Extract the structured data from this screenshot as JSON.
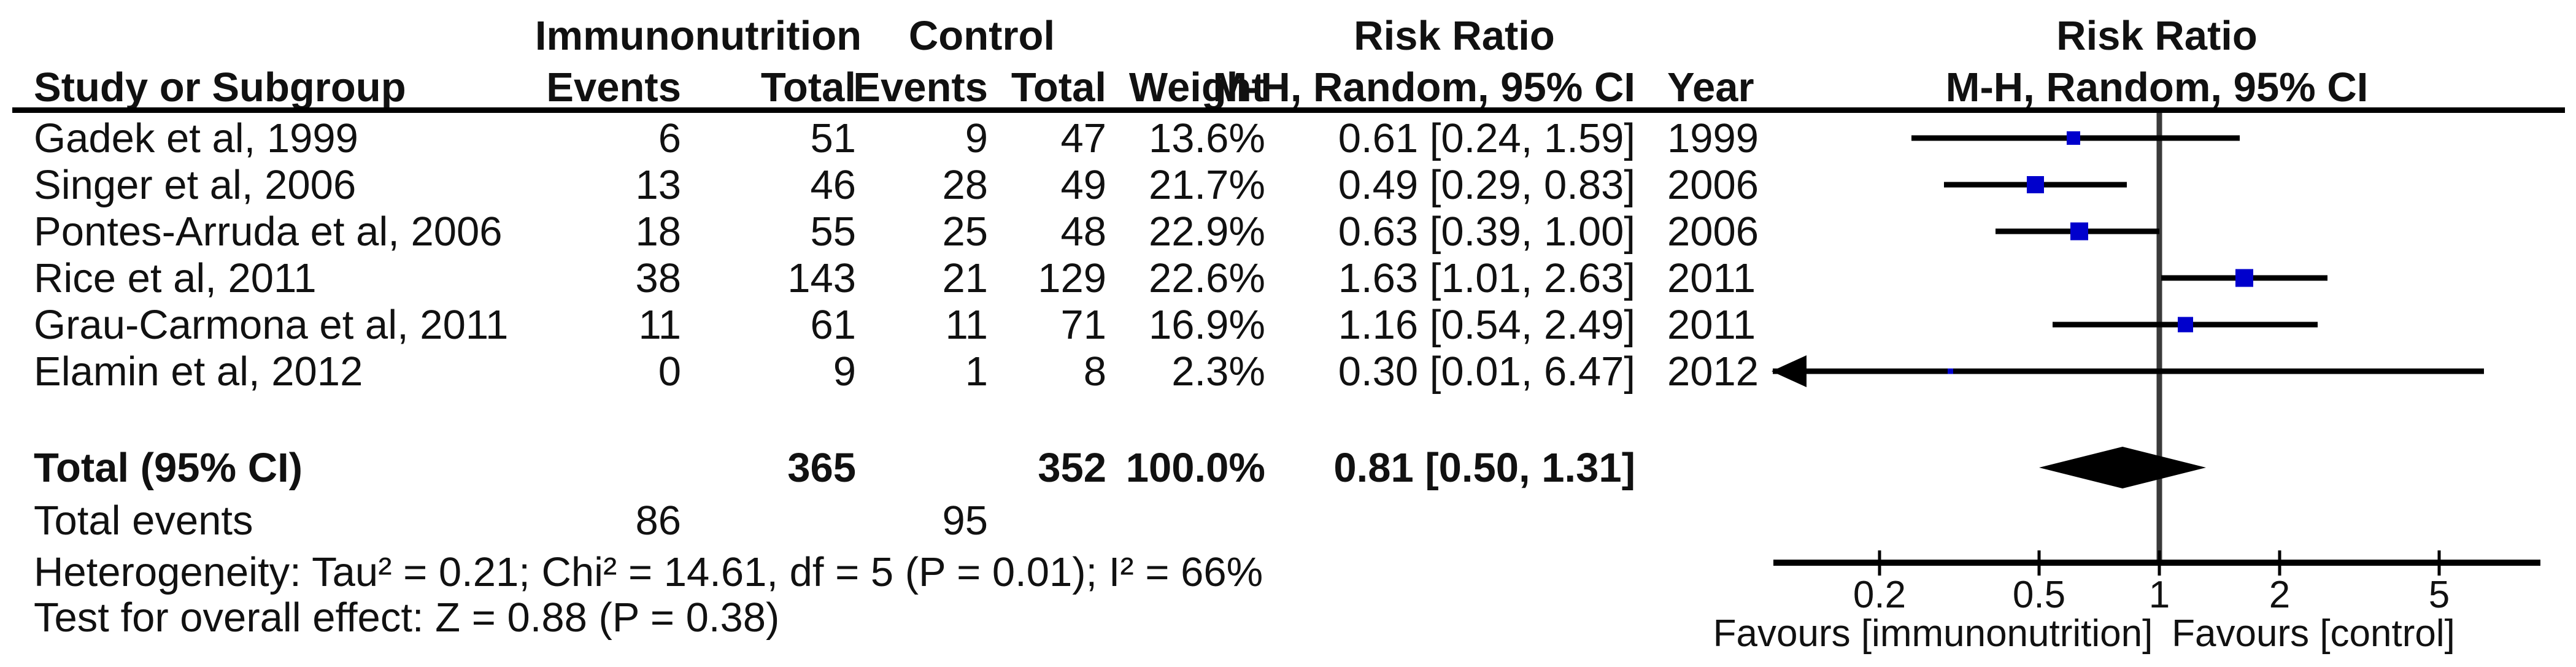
{
  "groups": {
    "experimental": "Immunonutrition",
    "control": "Control",
    "effect_left": "Risk Ratio",
    "effect_right": "Risk Ratio"
  },
  "columns": {
    "study": "Study or Subgroup",
    "events": "Events",
    "total": "Total",
    "events2": "Events",
    "total2": "Total",
    "weight": "Weight",
    "ci": "M-H, Random, 95% CI",
    "year": "Year",
    "plot_subtitle": "M-H, Random, 95% CI"
  },
  "chart_data": {
    "type": "forest",
    "effect_measure": "Risk Ratio",
    "method": "M-H, Random, 95% CI",
    "x_scale": "log",
    "x_ticks": [
      0.2,
      0.5,
      1,
      2,
      5
    ],
    "x_range": [
      0.108,
      8.9
    ],
    "favours_left": "Favours [immunonutrition]",
    "favours_right": "Favours [control]",
    "marker_color": "#0000CC",
    "line_color": "#000000",
    "axis_color": "#000000",
    "no_effect_line_color": "#3a3a3a",
    "studies": [
      {
        "name": "Gadek et al, 1999",
        "events_1": "6",
        "total_1": "51",
        "events_2": "9",
        "total_2": "47",
        "weight": "13.6%",
        "weight_pct": 13.6,
        "rr": 0.61,
        "ci_low": 0.24,
        "ci_high": 1.59,
        "ci_label": "0.61 [0.24, 1.59]",
        "year": "1999"
      },
      {
        "name": "Singer et al, 2006",
        "events_1": "13",
        "total_1": "46",
        "events_2": "28",
        "total_2": "49",
        "weight": "21.7%",
        "weight_pct": 21.7,
        "rr": 0.49,
        "ci_low": 0.29,
        "ci_high": 0.83,
        "ci_label": "0.49 [0.29, 0.83]",
        "year": "2006"
      },
      {
        "name": "Pontes-Arruda et al, 2006",
        "events_1": "18",
        "total_1": "55",
        "events_2": "25",
        "total_2": "48",
        "weight": "22.9%",
        "weight_pct": 22.9,
        "rr": 0.63,
        "ci_low": 0.39,
        "ci_high": 1.0,
        "ci_label": "0.63 [0.39, 1.00]",
        "year": "2006"
      },
      {
        "name": "Rice et al, 2011",
        "events_1": "38",
        "total_1": "143",
        "events_2": "21",
        "total_2": "129",
        "weight": "22.6%",
        "weight_pct": 22.6,
        "rr": 1.63,
        "ci_low": 1.01,
        "ci_high": 2.63,
        "ci_label": "1.63 [1.01, 2.63]",
        "year": "2011"
      },
      {
        "name": "Grau-Carmona et al, 2011",
        "events_1": "11",
        "total_1": "61",
        "events_2": "11",
        "total_2": "71",
        "weight": "16.9%",
        "weight_pct": 16.9,
        "rr": 1.16,
        "ci_low": 0.54,
        "ci_high": 2.49,
        "ci_label": "1.16 [0.54, 2.49]",
        "year": "2011"
      },
      {
        "name": "Elamin et al, 2012",
        "events_1": "0",
        "total_1": "9",
        "events_2": "1",
        "total_2": "8",
        "weight": "2.3%",
        "weight_pct": 2.3,
        "rr": 0.3,
        "ci_low": 0.01,
        "ci_high": 6.47,
        "ci_label": "0.30 [0.01, 6.47]",
        "year": "2012"
      }
    ],
    "total": {
      "label": "Total (95% CI)",
      "total_1": "365",
      "total_2": "352",
      "weight": "100.0%",
      "rr": 0.81,
      "ci_low": 0.5,
      "ci_high": 1.31,
      "ci_label": "0.81 [0.50, 1.31]"
    },
    "total_events": {
      "label": "Total events",
      "events_1": "86",
      "events_2": "95"
    },
    "heterogeneity": "Heterogeneity: Tau² = 0.21; Chi² = 14.61, df = 5 (P = 0.01); I² = 66%",
    "overall_effect": "Test for overall effect: Z = 0.88 (P = 0.38)"
  }
}
